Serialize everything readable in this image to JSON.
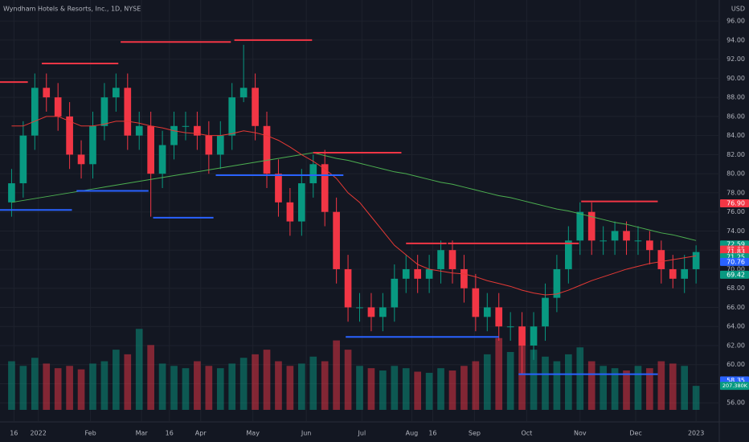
{
  "chart_data": {
    "type": "candlestick",
    "title": "Wyndham Hotels & Resorts, Inc., 1D, NYSE",
    "currency": "USD",
    "up_color": "#089981",
    "down_color": "#f23645",
    "x": [
      0,
      1,
      2,
      3,
      4,
      5,
      6,
      7,
      8,
      9,
      10,
      11,
      12,
      13,
      14,
      15,
      16,
      17,
      18,
      19,
      20,
      21,
      22,
      23,
      24,
      25,
      26,
      27,
      28,
      29,
      30,
      31,
      32,
      33,
      34,
      35,
      36,
      37,
      38,
      39,
      40,
      41,
      42,
      43,
      44,
      45,
      46,
      47,
      48,
      49,
      50,
      51,
      52,
      53,
      54,
      55,
      56,
      57,
      58,
      59
    ],
    "open": [
      77,
      79,
      84,
      89,
      88,
      86,
      82,
      81,
      85,
      88,
      89,
      84,
      85,
      80,
      83,
      85,
      85,
      84,
      82,
      84,
      88,
      89,
      85,
      80,
      77,
      75,
      79,
      81,
      76,
      70,
      66,
      66,
      65,
      66,
      69,
      70,
      69,
      70,
      72,
      70,
      68,
      65,
      66,
      64,
      64,
      62,
      64,
      67,
      70,
      73,
      76,
      73,
      73,
      74,
      73,
      73,
      72,
      70,
      69,
      70
    ],
    "high": [
      80.5,
      85.5,
      90.5,
      90.5,
      89.5,
      87.5,
      83.5,
      86.5,
      89.5,
      90.5,
      90.5,
      86.5,
      86.5,
      84.5,
      86.5,
      86.5,
      86.5,
      85.5,
      85.5,
      89.5,
      93.5,
      90.5,
      86.5,
      81.5,
      78.5,
      80.5,
      82,
      82.5,
      77.5,
      71.5,
      67.5,
      67.5,
      67.5,
      70.5,
      71.5,
      71.5,
      71.5,
      73,
      73,
      71.5,
      69.5,
      67.5,
      67.5,
      65.5,
      65.5,
      65.5,
      68.5,
      71.5,
      74.5,
      77,
      77,
      74.5,
      75,
      75,
      74.5,
      74,
      73,
      71.5,
      71.5,
      72.5
    ],
    "low": [
      75.5,
      77.5,
      82.5,
      86.5,
      84.5,
      80.5,
      79.5,
      79.5,
      83.5,
      86.5,
      82.5,
      82.5,
      75.5,
      78.5,
      81.5,
      83.5,
      82.5,
      80,
      80.5,
      82.5,
      87.5,
      83.5,
      78.5,
      75.5,
      73.5,
      73.5,
      77.5,
      74.5,
      68.5,
      64.5,
      64.5,
      63.5,
      63.5,
      64.5,
      67.5,
      67.5,
      67.5,
      68.5,
      68.5,
      66.5,
      63.5,
      63.5,
      62.5,
      62.5,
      59,
      60.5,
      62.5,
      65.5,
      68.5,
      71.5,
      71.5,
      71.5,
      71.5,
      71.5,
      71.5,
      70.5,
      68.5,
      68,
      67.5,
      68.5
    ],
    "close": [
      79,
      84,
      89,
      88,
      86,
      82,
      81,
      85,
      88,
      89,
      84,
      85,
      80,
      83,
      85,
      85,
      84,
      82,
      84,
      88,
      89,
      85,
      80,
      77,
      75,
      79,
      81,
      76,
      70,
      66,
      66,
      65,
      66,
      69,
      70,
      69,
      70,
      72,
      70,
      68,
      65,
      66,
      64,
      64,
      62,
      64,
      67,
      70,
      73,
      76,
      73,
      73,
      74,
      73,
      73,
      72,
      70,
      69,
      70,
      71.8
    ],
    "volume": [
      420,
      380,
      450,
      400,
      360,
      380,
      350,
      400,
      420,
      520,
      480,
      700,
      560,
      400,
      380,
      360,
      420,
      380,
      360,
      400,
      450,
      480,
      520,
      420,
      380,
      400,
      460,
      420,
      600,
      520,
      380,
      360,
      340,
      380,
      360,
      330,
      320,
      360,
      340,
      380,
      420,
      480,
      620,
      500,
      560,
      520,
      460,
      420,
      480,
      540,
      420,
      380,
      360,
      340,
      380,
      360,
      420,
      400,
      380,
      207.38
    ],
    "vlim": [
      0,
      1000
    ],
    "series": [
      {
        "color": "#4caf50",
        "values": [
          77,
          77.2,
          77.4,
          77.6,
          77.8,
          78,
          78.2,
          78.4,
          78.6,
          78.8,
          79,
          79.2,
          79.4,
          79.6,
          79.8,
          80,
          80.2,
          80.4,
          80.6,
          80.8,
          81,
          81.2,
          81.4,
          81.6,
          81.8,
          82,
          82.2,
          81.9,
          81.6,
          81.4,
          81.1,
          80.8,
          80.5,
          80.2,
          80,
          79.7,
          79.4,
          79.1,
          78.9,
          78.6,
          78.3,
          78,
          77.7,
          77.5,
          77.2,
          76.9,
          76.6,
          76.3,
          76.1,
          75.8,
          75.5,
          75.2,
          74.9,
          74.7,
          74.4,
          74.1,
          73.8,
          73.6,
          73.3,
          73
        ]
      },
      {
        "color": "#e53935",
        "values": [
          85,
          85,
          85.5,
          86,
          86,
          85.5,
          85,
          85,
          85.2,
          85.5,
          85.5,
          85.3,
          85,
          84.8,
          84.5,
          84.3,
          84.2,
          84,
          84,
          84.2,
          84.5,
          84.3,
          84,
          83.5,
          82.8,
          82,
          81.3,
          80.5,
          79.5,
          78,
          77,
          75.5,
          74,
          72.5,
          71.5,
          70.5,
          70,
          69.8,
          69.6,
          69.5,
          69.2,
          68.8,
          68.5,
          68.2,
          67.8,
          67.5,
          67.3,
          67.4,
          67.8,
          68.3,
          68.8,
          69.2,
          69.6,
          70,
          70.3,
          70.6,
          70.8,
          71,
          71.2,
          71.4
        ]
      }
    ],
    "levels": [
      {
        "x0": -1,
        "x1": 1.4,
        "y": 89.6,
        "color": "#f23645"
      },
      {
        "x0": 2.6,
        "x1": 9.2,
        "y": 91.55,
        "color": "#f23645"
      },
      {
        "x0": 9.4,
        "x1": 18.9,
        "y": 93.8,
        "color": "#f23645"
      },
      {
        "x0": 19.2,
        "x1": 25.9,
        "y": 94,
        "color": "#f23645"
      },
      {
        "x0": -1,
        "x1": 5.2,
        "y": 76.2,
        "color": "#2962ff"
      },
      {
        "x0": 5.6,
        "x1": 11.8,
        "y": 78.2,
        "color": "#2962ff"
      },
      {
        "x0": 12.2,
        "x1": 17.4,
        "y": 75.4,
        "color": "#2962ff"
      },
      {
        "x0": 17.6,
        "x1": 28.6,
        "y": 79.85,
        "color": "#2962ff"
      },
      {
        "x0": 26,
        "x1": 33.6,
        "y": 82.2,
        "color": "#f23645"
      },
      {
        "x0": 34,
        "x1": 37.5,
        "y": 72.7,
        "color": "#f23645"
      },
      {
        "x0": 37.6,
        "x1": 48.9,
        "y": 72.7,
        "color": "#f23645"
      },
      {
        "x0": 28.8,
        "x1": 42,
        "y": 62.9,
        "color": "#2962ff"
      },
      {
        "x0": 49.1,
        "x1": 55.7,
        "y": 77.1,
        "color": "#f23645"
      },
      {
        "x0": 43.7,
        "x1": 55.7,
        "y": 59,
        "color": "#2962ff"
      }
    ],
    "price_labels": [
      {
        "value": 76.9,
        "label": "76.90",
        "color": "#f23645"
      },
      {
        "value": 72.59,
        "label": "72.59",
        "color": "#089981"
      },
      {
        "value": 72.05,
        "label": "72.05",
        "color": "#f23645"
      },
      {
        "value": 71.83,
        "label": "71.83",
        "color": "#f23645"
      },
      {
        "value": 71.25,
        "label": "71.25",
        "color": "#089981"
      },
      {
        "value": 70.76,
        "label": "70.76",
        "color": "#2962ff"
      },
      {
        "value": 69.42,
        "label": "69.42",
        "color": "#089981"
      },
      {
        "value": 58.35,
        "label": "58.35",
        "color": "#2962ff"
      }
    ],
    "volume_label": "207.380K",
    "xlim": [
      -1,
      61
    ],
    "ylim": [
      54,
      98.2
    ],
    "yticks": [
      {
        "value": 56,
        "label": "56.00"
      },
      {
        "value": 58,
        "label": "58.00"
      },
      {
        "value": 60,
        "label": "60.00"
      },
      {
        "value": 62,
        "label": "62.00"
      },
      {
        "value": 64,
        "label": "64.00"
      },
      {
        "value": 66,
        "label": "66.00"
      },
      {
        "value": 68,
        "label": "68.00"
      },
      {
        "value": 70,
        "label": "70.00"
      },
      {
        "value": 72,
        "label": "72.00"
      },
      {
        "value": 74,
        "label": "74.00"
      },
      {
        "value": 76,
        "label": "76.00"
      },
      {
        "value": 78,
        "label": "78.00"
      },
      {
        "value": 80,
        "label": "80.00"
      },
      {
        "value": 82,
        "label": "82.00"
      },
      {
        "value": 84,
        "label": "84.00"
      },
      {
        "value": 86,
        "label": "86.00"
      },
      {
        "value": 88,
        "label": "88.00"
      },
      {
        "value": 90,
        "label": "90.00"
      },
      {
        "value": 92,
        "label": "92.00"
      },
      {
        "value": 94,
        "label": "94.00"
      },
      {
        "value": 96,
        "label": "96.00"
      }
    ],
    "xticks": [
      {
        "value": 0.2,
        "label": "16"
      },
      {
        "value": 2.3,
        "label": "2022"
      },
      {
        "value": 6.8,
        "label": "Feb"
      },
      {
        "value": 11.2,
        "label": "Mar"
      },
      {
        "value": 13.6,
        "label": "16"
      },
      {
        "value": 16.3,
        "label": "Apr"
      },
      {
        "value": 20.8,
        "label": "May"
      },
      {
        "value": 25.4,
        "label": "Jun"
      },
      {
        "value": 30.2,
        "label": "Jul"
      },
      {
        "value": 34.5,
        "label": "Aug"
      },
      {
        "value": 36.3,
        "label": "16"
      },
      {
        "value": 39.9,
        "label": "Sep"
      },
      {
        "value": 44.4,
        "label": "Oct"
      },
      {
        "value": 49,
        "label": "Nov"
      },
      {
        "value": 53.8,
        "label": "Dec"
      },
      {
        "value": 59,
        "label": "2023"
      }
    ],
    "grid": true
  }
}
